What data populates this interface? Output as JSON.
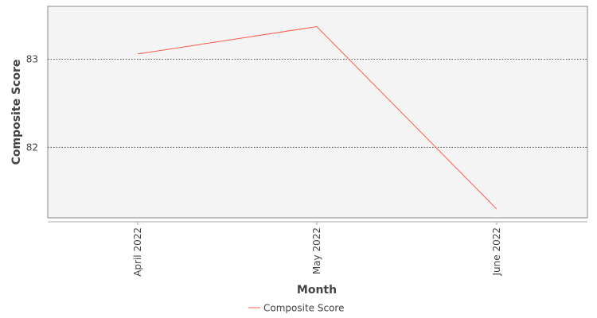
{
  "chart_data": {
    "type": "line",
    "categories": [
      "April 2022",
      "May 2022",
      "June 2022"
    ],
    "series": [
      {
        "name": "Composite Score",
        "values": [
          83.06,
          83.37,
          81.3
        ],
        "color": "#ff5a4d"
      }
    ],
    "title": "",
    "xlabel": "Month",
    "ylabel": "Composite Score",
    "ylim": [
      81.2,
      83.6
    ],
    "y_ticks": [
      {
        "value": 82,
        "label": "82"
      },
      {
        "value": 83,
        "label": "83"
      }
    ],
    "grid": true,
    "legend_position": "bottom",
    "plot_background": "#f4f4f4"
  }
}
